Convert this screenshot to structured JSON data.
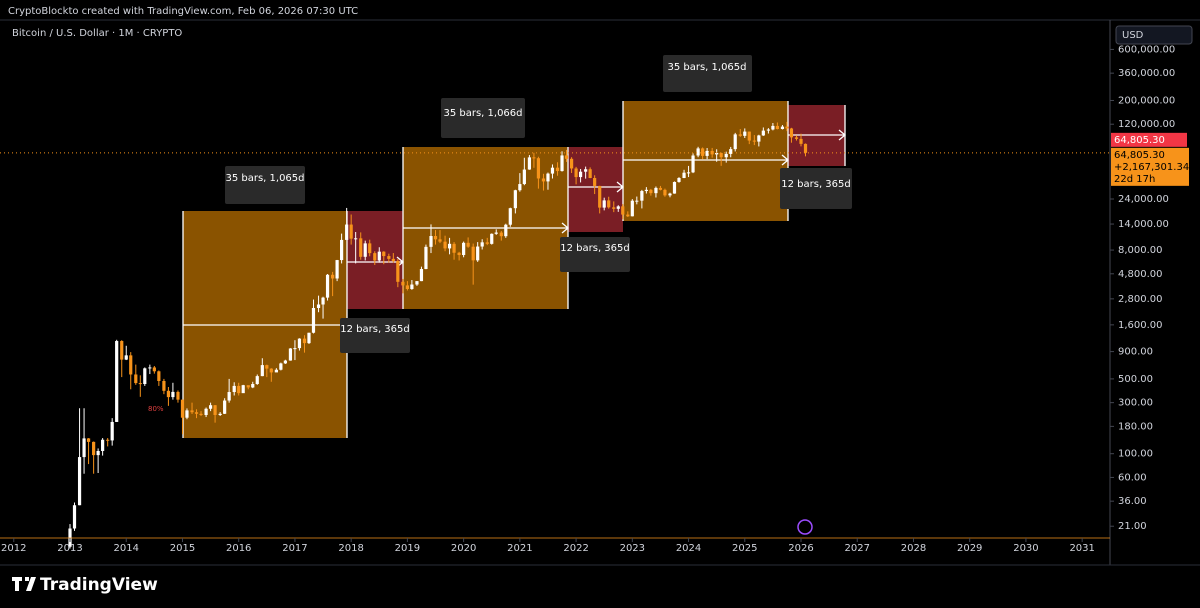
{
  "header": {
    "credit": "CryptoBlockto created with TradingView.com, Feb 06, 2026 07:30 UTC",
    "symbol": "Bitcoin / U.S. Dollar · 1M · CRYPTO",
    "currency": "USD"
  },
  "chart_data": {
    "type": "candlestick",
    "log_scale": true,
    "up_color": "#ffffff",
    "down_color": "#f7931a",
    "x": [
      2013,
      2013.08,
      2013.17,
      2013.25,
      2013.33,
      2013.42,
      2013.5,
      2013.58,
      2013.67,
      2013.75,
      2013.83,
      2013.92,
      2014,
      2014.08,
      2014.17,
      2014.25,
      2014.33,
      2014.42,
      2014.5,
      2014.58,
      2014.67,
      2014.75,
      2014.83,
      2014.92,
      2015,
      2015.08,
      2015.17,
      2015.25,
      2015.33,
      2015.42,
      2015.5,
      2015.58,
      2015.67,
      2015.75,
      2015.83,
      2015.92,
      2016,
      2016.08,
      2016.17,
      2016.25,
      2016.33,
      2016.42,
      2016.5,
      2016.58,
      2016.67,
      2016.75,
      2016.83,
      2016.92,
      2017,
      2017.08,
      2017.17,
      2017.25,
      2017.33,
      2017.42,
      2017.5,
      2017.58,
      2017.67,
      2017.75,
      2017.83,
      2017.92,
      2018,
      2018.08,
      2018.17,
      2018.25,
      2018.33,
      2018.42,
      2018.5,
      2018.58,
      2018.67,
      2018.75,
      2018.83,
      2018.92,
      2019,
      2019.08,
      2019.17,
      2019.25,
      2019.33,
      2019.42,
      2019.5,
      2019.58,
      2019.67,
      2019.75,
      2019.83,
      2019.92,
      2020,
      2020.08,
      2020.17,
      2020.25,
      2020.33,
      2020.42,
      2020.5,
      2020.58,
      2020.67,
      2020.75,
      2020.83,
      2020.92,
      2021,
      2021.08,
      2021.17,
      2021.25,
      2021.33,
      2021.42,
      2021.5,
      2021.58,
      2021.67,
      2021.75,
      2021.83,
      2021.92,
      2022,
      2022.08,
      2022.17,
      2022.25,
      2022.33,
      2022.42,
      2022.5,
      2022.58,
      2022.67,
      2022.75,
      2022.83,
      2022.92,
      2023,
      2023.08,
      2023.17,
      2023.25,
      2023.33,
      2023.42,
      2023.5,
      2023.58,
      2023.67,
      2023.75,
      2023.83,
      2023.92,
      2024,
      2024.08,
      2024.17,
      2024.25,
      2024.33,
      2024.42,
      2024.5,
      2024.58,
      2024.67,
      2024.75,
      2024.83,
      2024.92,
      2025,
      2025.08,
      2025.17,
      2025.25,
      2025.33,
      2025.42,
      2025.5,
      2025.58,
      2025.67,
      2025.75,
      2025.83,
      2025.92,
      2026,
      2026.08
    ],
    "open": [
      13.5,
      20,
      33,
      93,
      139,
      129,
      97,
      106,
      135,
      133,
      198,
      1130,
      757,
      830,
      550,
      457,
      448,
      628,
      640,
      589,
      478,
      387,
      338,
      378,
      320,
      217,
      254,
      244,
      236,
      230,
      263,
      284,
      230,
      236,
      314,
      377,
      430,
      368,
      437,
      416,
      448,
      531,
      673,
      624,
      575,
      609,
      698,
      742,
      963,
      970,
      1190,
      1080,
      1350,
      2300,
      2480,
      2875,
      4700,
      4340,
      6450,
      9950,
      13850,
      10220,
      10300,
      6920,
      9240,
      7490,
      6390,
      7730,
      7030,
      6620,
      6320,
      4040,
      3740,
      3460,
      3810,
      4100,
      5320,
      8570,
      10820,
      10080,
      9590,
      8290,
      9150,
      7550,
      7190,
      9350,
      8600,
      6410,
      8630,
      9450,
      9140,
      11350,
      11660,
      10780,
      13800,
      19700,
      28990,
      33110,
      45240,
      58800,
      57750,
      37330,
      35040,
      41460,
      47100,
      43790,
      61300,
      57000,
      46300,
      38480,
      43190,
      45540,
      37710,
      31790,
      19940,
      23300,
      20050,
      19430,
      20490,
      17170,
      16540,
      23140,
      23150,
      28480,
      29250,
      27220,
      30480,
      29230,
      25940,
      26970,
      34640,
      37720,
      42280,
      42580,
      61200,
      71290,
      60670,
      67530,
      62680,
      64630,
      58970,
      63330,
      70220,
      96450,
      93430,
      102400,
      84370,
      82550,
      94200,
      104600,
      107100,
      115700,
      108200,
      114000,
      109500,
      90400,
      87500,
      78600
    ],
    "high": [
      22,
      35,
      266,
      266,
      140,
      130,
      112,
      140,
      140,
      215,
      1160,
      1150,
      1020,
      890,
      680,
      540,
      640,
      680,
      660,
      600,
      500,
      420,
      460,
      390,
      320,
      265,
      300,
      260,
      250,
      270,
      300,
      285,
      245,
      330,
      500,
      465,
      460,
      440,
      430,
      470,
      550,
      780,
      680,
      630,
      630,
      710,
      755,
      970,
      1150,
      1200,
      1280,
      1350,
      2760,
      3000,
      2930,
      4780,
      5000,
      6470,
      11400,
      19800,
      17200,
      11800,
      11700,
      9800,
      10000,
      7800,
      8500,
      7800,
      7400,
      7500,
      6600,
      4300,
      4100,
      4200,
      4100,
      5600,
      9000,
      13900,
      12300,
      12300,
      10900,
      10400,
      9500,
      7700,
      9600,
      10500,
      9200,
      9500,
      10100,
      10400,
      11450,
      12500,
      12050,
      14100,
      19900,
      29300,
      41900,
      58300,
      61800,
      64900,
      59600,
      41300,
      42400,
      50500,
      52900,
      67000,
      69000,
      59000,
      47900,
      45800,
      48200,
      47400,
      40000,
      31900,
      24700,
      25200,
      22800,
      21000,
      21500,
      18400,
      23950,
      25300,
      29200,
      31000,
      29800,
      31400,
      31800,
      30000,
      27500,
      35000,
      38400,
      45000,
      48900,
      64000,
      73800,
      72800,
      71900,
      72000,
      70000,
      65100,
      66500,
      73600,
      99600,
      108300,
      109600,
      102500,
      95000,
      95600,
      111900,
      110400,
      123200,
      124500,
      117900,
      126200,
      111000,
      94600,
      97900,
      79300
    ],
    "low": [
      13,
      19,
      33,
      65,
      80,
      65,
      66,
      96,
      117,
      119,
      198,
      520,
      750,
      400,
      440,
      340,
      430,
      555,
      560,
      430,
      360,
      280,
      320,
      300,
      152,
      210,
      235,
      215,
      225,
      220,
      250,
      195,
      225,
      235,
      300,
      350,
      350,
      370,
      400,
      410,
      440,
      530,
      520,
      470,
      590,
      600,
      690,
      740,
      750,
      920,
      880,
      1060,
      1330,
      2100,
      1830,
      2700,
      2970,
      4100,
      6000,
      10600,
      9000,
      6000,
      6500,
      6400,
      7000,
      5800,
      6100,
      5900,
      6100,
      6100,
      3600,
      3150,
      3350,
      3400,
      3700,
      4100,
      5300,
      7500,
      9000,
      9300,
      7800,
      7300,
      6500,
      6400,
      6850,
      8400,
      3800,
      6200,
      8100,
      8900,
      9000,
      11100,
      9800,
      10400,
      13200,
      17600,
      28100,
      32300,
      45000,
      47000,
      30000,
      28800,
      29300,
      37300,
      39600,
      43300,
      53300,
      42000,
      32900,
      34300,
      37200,
      37600,
      26700,
      17600,
      18800,
      19500,
      18100,
      18200,
      15500,
      16300,
      16500,
      21400,
      19600,
      27000,
      25800,
      24800,
      28900,
      25200,
      24900,
      26900,
      34100,
      37600,
      38500,
      41900,
      59000,
      56500,
      56600,
      58400,
      53500,
      49000,
      52500,
      58900,
      66800,
      91400,
      89200,
      78200,
      76600,
      74400,
      93300,
      98200,
      105100,
      107300,
      107200,
      103500,
      80600,
      84400,
      74500,
      60100
    ],
    "close": [
      20,
      33,
      93,
      139,
      129,
      97,
      106,
      135,
      133,
      198,
      1130,
      757,
      830,
      550,
      457,
      448,
      628,
      640,
      589,
      478,
      387,
      338,
      378,
      320,
      217,
      254,
      244,
      236,
      230,
      263,
      284,
      230,
      236,
      314,
      377,
      430,
      368,
      437,
      416,
      448,
      531,
      673,
      624,
      575,
      609,
      698,
      742,
      963,
      970,
      1190,
      1080,
      1350,
      2300,
      2480,
      2875,
      4700,
      4340,
      6450,
      9950,
      13850,
      10220,
      10300,
      6920,
      9240,
      7490,
      6390,
      7730,
      7030,
      6620,
      6320,
      4040,
      3740,
      3460,
      3810,
      4100,
      5320,
      8570,
      10820,
      10080,
      9590,
      8290,
      9150,
      7550,
      7190,
      9350,
      8600,
      6410,
      8630,
      9450,
      9140,
      11350,
      11660,
      10780,
      13800,
      19700,
      28990,
      33110,
      45240,
      58800,
      57750,
      37330,
      35040,
      41460,
      47100,
      43790,
      61300,
      57000,
      46300,
      38480,
      43190,
      45540,
      37710,
      31790,
      19940,
      23300,
      20050,
      19430,
      20490,
      17170,
      16540,
      23140,
      23150,
      28480,
      29250,
      27220,
      30480,
      29230,
      25940,
      26970,
      34640,
      37720,
      42280,
      42580,
      61200,
      71290,
      60670,
      67530,
      62680,
      64630,
      58970,
      63330,
      70220,
      96450,
      93430,
      102400,
      84370,
      82550,
      94200,
      104600,
      107100,
      115700,
      108200,
      114000,
      109500,
      90400,
      87500,
      78600,
      64805.3
    ],
    "xlim": [
      2011.755,
      2031.495
    ],
    "xticks": [
      2012,
      2013,
      2014,
      2015,
      2016,
      2017,
      2018,
      2019,
      2020,
      2021,
      2022,
      2023,
      2024,
      2025,
      2026,
      2027,
      2028,
      2029,
      2030,
      2031
    ],
    "ylim": [
      16.3,
      1130000
    ],
    "yticks": [
      {
        "value": 600000,
        "label": "600,000.00"
      },
      {
        "value": 360000,
        "label": "360,000.00"
      },
      {
        "value": 200000,
        "label": "200,000.00"
      },
      {
        "value": 120000,
        "label": "120,000.00"
      },
      {
        "value": 24000,
        "label": "24,000.00"
      },
      {
        "value": 14000,
        "label": "14,000.00"
      },
      {
        "value": 8000,
        "label": "8,000.00"
      },
      {
        "value": 4800,
        "label": "4,800.00"
      },
      {
        "value": 2800,
        "label": "2,800.00"
      },
      {
        "value": 1600,
        "label": "1,600.00"
      },
      {
        "value": 900,
        "label": "900.00"
      },
      {
        "value": 500,
        "label": "500.00"
      },
      {
        "value": 300,
        "label": "300.00"
      },
      {
        "value": 180,
        "label": "180.00"
      },
      {
        "value": 100,
        "label": "100.00"
      },
      {
        "value": 60,
        "label": "60.00"
      },
      {
        "value": 36,
        "label": "36.00"
      },
      {
        "value": 21,
        "label": "21.00"
      }
    ],
    "last_price": {
      "value": 64805.3,
      "label": "64,805.30"
    },
    "change_label": "+2,167,301.34%",
    "countdown": "22d 17h",
    "annotations": [
      "35 bars, 1,065d",
      "12 bars, 365d",
      "35 bars, 1,066d",
      "12 bars, 365d",
      "35 bars, 1,065d",
      "12 bars, 365d",
      "80%"
    ]
  },
  "footer": {
    "brand": "TradingView"
  }
}
